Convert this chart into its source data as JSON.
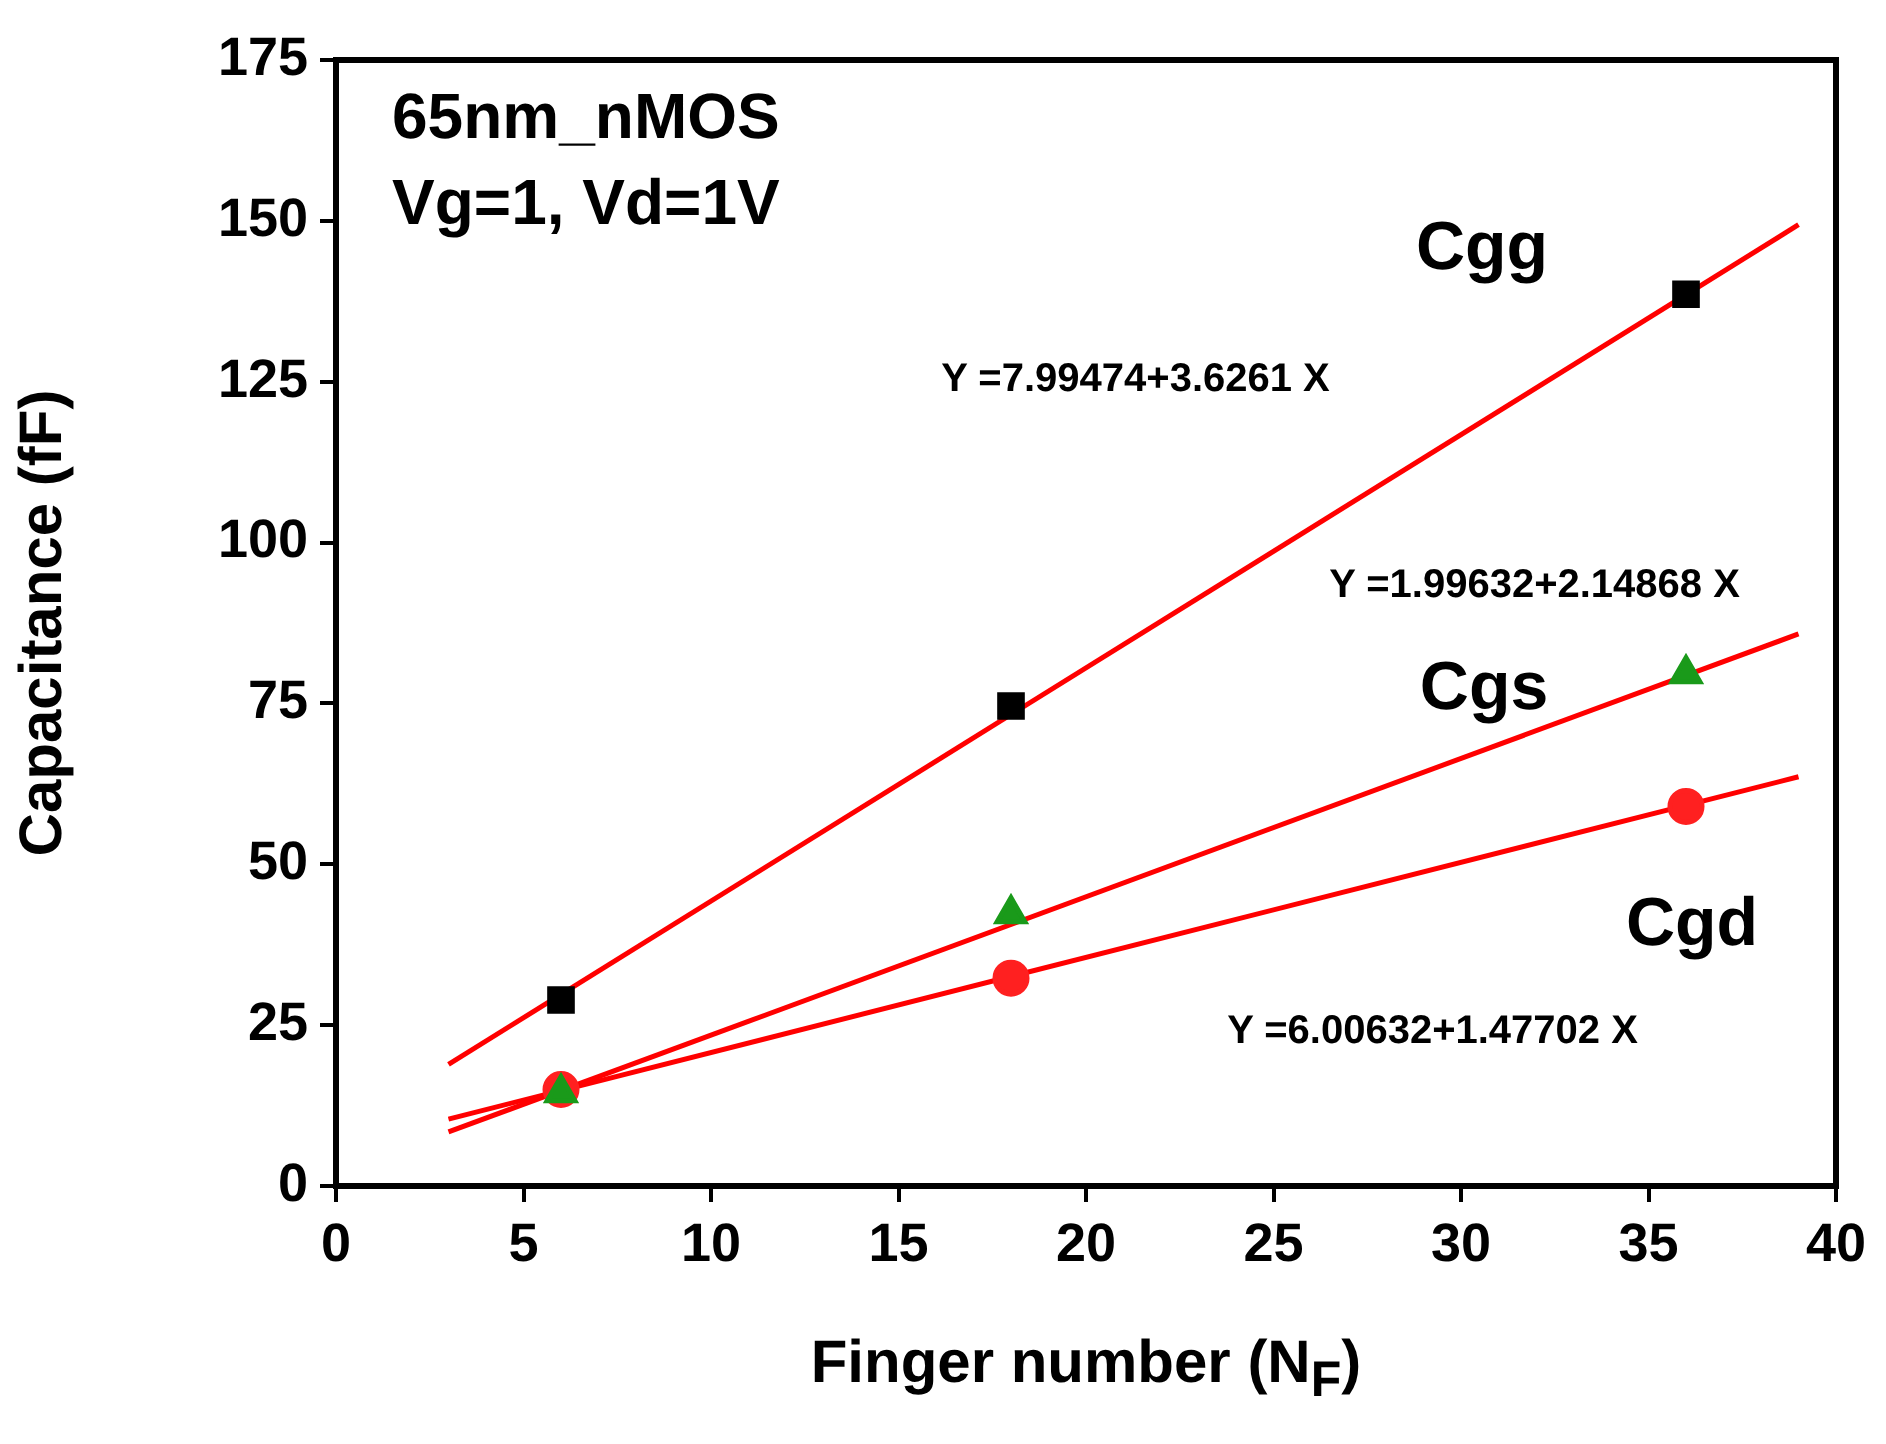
{
  "chart_data": {
    "type": "scatter",
    "xlabel": "Finger number (N$_{F}$)",
    "ylabel": "Capacitance (fF)",
    "xlim": [
      0,
      40
    ],
    "xticks": [
      0,
      5,
      10,
      15,
      20,
      25,
      30,
      35,
      40
    ],
    "ylim": [
      0,
      175
    ],
    "yticks": [
      0,
      25,
      50,
      75,
      100,
      125,
      150,
      175
    ],
    "grid": false,
    "legend": false,
    "series": [
      {
        "type": "scatter",
        "name": "Cgg",
        "color": "#000000",
        "marker": "square",
        "x": [
          6,
          18,
          36
        ],
        "values": [
          28.9,
          74.6,
          138.6
        ]
      },
      {
        "type": "scatter",
        "name": "Cgs",
        "color": "#1a9a1a",
        "marker": "triangle",
        "x": [
          6,
          18,
          36
        ],
        "values": [
          14.5,
          42.3,
          79.6
        ]
      },
      {
        "type": "scatter",
        "name": "Cgd",
        "color": "#ff2020",
        "marker": "circle",
        "x": [
          6,
          18,
          36
        ],
        "values": [
          15,
          32.3,
          59
        ]
      },
      {
        "type": "line",
        "color": "#ff0000",
        "marker": "none",
        "x": [
          3,
          39
        ],
        "values": [
          18.9,
          149.4
        ]
      },
      {
        "type": "line",
        "color": "#ff0000",
        "marker": "none",
        "x": [
          3,
          39
        ],
        "values": [
          8.4,
          85.8
        ]
      },
      {
        "type": "line",
        "color": "#ff0000",
        "marker": "none",
        "x": [
          3,
          39
        ],
        "values": [
          10.4,
          63.6
        ]
      }
    ],
    "annotations": [
      "65nm_nMOS",
      "Vg=1, Vd=1V",
      "Y =7.99474+3.6261 X",
      "Y =1.99632+2.14868 X",
      "Y =6.00632+1.47702 X"
    ]
  }
}
